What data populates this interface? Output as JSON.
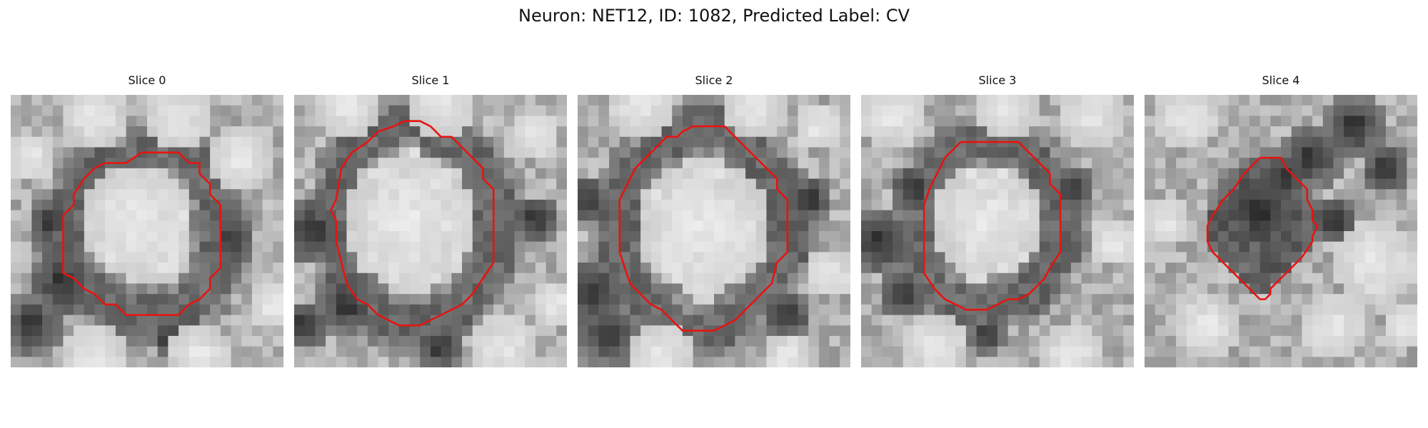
{
  "figure": {
    "title": "Neuron: NET12, ID: 1082, Predicted Label: CV"
  },
  "panels": [
    {
      "title": "Slice 0",
      "contour": [
        [
          12.5,
          5.5
        ],
        [
          16,
          5.5
        ],
        [
          17,
          6.5
        ],
        [
          18,
          6.5
        ],
        [
          18,
          7.5
        ],
        [
          19,
          8.5
        ],
        [
          19,
          9.5
        ],
        [
          20,
          10.5
        ],
        [
          20,
          16.5
        ],
        [
          19,
          17.5
        ],
        [
          19,
          18.5
        ],
        [
          18,
          19.5
        ],
        [
          17,
          20
        ],
        [
          16,
          21
        ],
        [
          11,
          21
        ],
        [
          10,
          20
        ],
        [
          9,
          20
        ],
        [
          8,
          19
        ],
        [
          7,
          18.5
        ],
        [
          6,
          17.5
        ],
        [
          5,
          17
        ],
        [
          5,
          11.5
        ],
        [
          6,
          10.5
        ],
        [
          6,
          9.5
        ],
        [
          7,
          8
        ],
        [
          8,
          7
        ],
        [
          9,
          6.5
        ],
        [
          11,
          6.5
        ],
        [
          12.5,
          5.5
        ]
      ],
      "dark_spots": [
        [
          5,
          18,
          3.5
        ],
        [
          2,
          22,
          3
        ],
        [
          4,
          12,
          2.5
        ],
        [
          21,
          14,
          2.5
        ],
        [
          15,
          23,
          2
        ]
      ],
      "bright_spots": [
        [
          12,
          12,
          5.5
        ],
        [
          8,
          2,
          3
        ],
        [
          16,
          2,
          3
        ],
        [
          2,
          6,
          2.5
        ],
        [
          22,
          6,
          3
        ],
        [
          8,
          25,
          3
        ],
        [
          18,
          25,
          3
        ],
        [
          25,
          20,
          2.5
        ]
      ]
    },
    {
      "title": "Slice 1",
      "contour": [
        [
          10.5,
          2.5
        ],
        [
          12,
          2.5
        ],
        [
          13,
          3
        ],
        [
          14,
          4
        ],
        [
          15,
          4
        ],
        [
          16,
          5
        ],
        [
          17,
          6
        ],
        [
          18,
          7
        ],
        [
          18,
          8
        ],
        [
          19,
          9
        ],
        [
          19,
          14
        ],
        [
          19,
          16
        ],
        [
          18,
          17.5
        ],
        [
          17,
          19
        ],
        [
          16,
          20
        ],
        [
          14,
          21
        ],
        [
          12,
          22
        ],
        [
          10,
          22
        ],
        [
          9,
          21.5
        ],
        [
          8,
          21
        ],
        [
          7,
          20
        ],
        [
          6,
          19.5
        ],
        [
          5,
          18
        ],
        [
          4.5,
          16
        ],
        [
          4,
          14
        ],
        [
          4,
          12
        ],
        [
          3.5,
          11
        ],
        [
          4,
          10
        ],
        [
          4.5,
          7
        ],
        [
          5.5,
          5.5
        ],
        [
          7,
          4.5
        ],
        [
          8,
          3.5
        ],
        [
          9.5,
          3
        ],
        [
          10.5,
          2.5
        ]
      ],
      "dark_spots": [
        [
          1.5,
          13,
          3.5
        ],
        [
          5,
          20,
          3
        ],
        [
          1,
          22,
          2.5
        ],
        [
          23,
          12,
          2.5
        ],
        [
          14,
          24,
          2.5
        ]
      ],
      "bright_spots": [
        [
          11,
          12,
          6.5
        ],
        [
          5,
          1,
          3
        ],
        [
          14,
          1,
          3
        ],
        [
          23,
          4,
          2.5
        ],
        [
          20,
          24,
          3
        ],
        [
          25,
          20,
          2.5
        ]
      ]
    },
    {
      "title": "Slice 2",
      "contour": [
        [
          11,
          3
        ],
        [
          14,
          3
        ],
        [
          15,
          4
        ],
        [
          16,
          5
        ],
        [
          17,
          6
        ],
        [
          18,
          7
        ],
        [
          19,
          8
        ],
        [
          19,
          9
        ],
        [
          20,
          10
        ],
        [
          20,
          11
        ],
        [
          20,
          15
        ],
        [
          19,
          16
        ],
        [
          18.5,
          18
        ],
        [
          17.5,
          19
        ],
        [
          16,
          20.5
        ],
        [
          15,
          21.5
        ],
        [
          13,
          22.5
        ],
        [
          10,
          22.5
        ],
        [
          9,
          21.5
        ],
        [
          8,
          20.5
        ],
        [
          7,
          20
        ],
        [
          6,
          19
        ],
        [
          5,
          18
        ],
        [
          4.5,
          16.5
        ],
        [
          4,
          15
        ],
        [
          4,
          10
        ],
        [
          5,
          8
        ],
        [
          5.5,
          7
        ],
        [
          6.5,
          6
        ],
        [
          7.5,
          5
        ],
        [
          8.5,
          4
        ],
        [
          9.5,
          4
        ],
        [
          10,
          3.5
        ],
        [
          11,
          3
        ]
      ],
      "dark_spots": [
        [
          1,
          10,
          2.5
        ],
        [
          1.5,
          19,
          3.5
        ],
        [
          3,
          23,
          3
        ],
        [
          22,
          10,
          2.5
        ],
        [
          20,
          21,
          2.5
        ]
      ],
      "bright_spots": [
        [
          12,
          12.5,
          6.5
        ],
        [
          6,
          1,
          3
        ],
        [
          17,
          1,
          3
        ],
        [
          23,
          3,
          2.5
        ],
        [
          24,
          17,
          2.5
        ],
        [
          8,
          25,
          3
        ],
        [
          20,
          25,
          2.5
        ]
      ]
    },
    {
      "title": "Slice 3",
      "contour": [
        [
          9.5,
          4.5
        ],
        [
          15,
          4.5
        ],
        [
          16,
          5.5
        ],
        [
          17,
          6.5
        ],
        [
          18,
          7.5
        ],
        [
          18,
          8.5
        ],
        [
          19,
          9.5
        ],
        [
          19,
          15
        ],
        [
          18,
          16.5
        ],
        [
          17.5,
          17.5
        ],
        [
          17,
          18
        ],
        [
          16,
          19
        ],
        [
          15,
          19.5
        ],
        [
          14,
          19.5
        ],
        [
          13,
          20
        ],
        [
          12,
          20.5
        ],
        [
          11,
          20.5
        ],
        [
          10,
          20.5
        ],
        [
          9,
          20
        ],
        [
          8,
          19.5
        ],
        [
          7,
          18.5
        ],
        [
          6,
          17
        ],
        [
          6,
          16
        ],
        [
          6,
          10.5
        ],
        [
          6.5,
          9
        ],
        [
          7,
          8
        ],
        [
          7.5,
          7
        ],
        [
          8,
          6
        ],
        [
          9,
          5
        ],
        [
          9.5,
          4.5
        ]
      ],
      "dark_spots": [
        [
          1.5,
          14,
          3.5
        ],
        [
          5,
          9,
          2.5
        ],
        [
          4,
          19,
          2.5
        ],
        [
          20,
          9,
          2.5
        ],
        [
          12,
          23,
          2
        ]
      ],
      "bright_spots": [
        [
          12,
          12,
          5.5
        ],
        [
          3,
          2,
          3
        ],
        [
          14,
          1,
          3
        ],
        [
          22,
          2,
          3
        ],
        [
          24,
          14,
          2.5
        ],
        [
          7,
          24,
          3
        ],
        [
          20,
          25,
          3
        ]
      ]
    },
    {
      "title": "Slice 4",
      "contour": [
        [
          11,
          6
        ],
        [
          12,
          6
        ],
        [
          13,
          6
        ],
        [
          13.5,
          7
        ],
        [
          14.5,
          8
        ],
        [
          15.5,
          9
        ],
        [
          15.5,
          10
        ],
        [
          16,
          11
        ],
        [
          16,
          12
        ],
        [
          16.5,
          12.5
        ],
        [
          16,
          13.5
        ],
        [
          16,
          14
        ],
        [
          15,
          15.5
        ],
        [
          14,
          16.5
        ],
        [
          13,
          17.5
        ],
        [
          12,
          18.5
        ],
        [
          12,
          19
        ],
        [
          11.5,
          19.5
        ],
        [
          11,
          19.5
        ],
        [
          10,
          18.5
        ],
        [
          9,
          17.5
        ],
        [
          8,
          16.5
        ],
        [
          7,
          15.5
        ],
        [
          6.5,
          15
        ],
        [
          6,
          14
        ],
        [
          6,
          12.5
        ],
        [
          6.5,
          11.5
        ],
        [
          7.5,
          10
        ],
        [
          8.5,
          9
        ],
        [
          9.5,
          7.5
        ],
        [
          10.5,
          6.5
        ],
        [
          11,
          6
        ]
      ],
      "dark_spots": [
        [
          11,
          11,
          5
        ],
        [
          13,
          8,
          3
        ],
        [
          16,
          6,
          3
        ],
        [
          20,
          3,
          3
        ],
        [
          23,
          7,
          2.5
        ],
        [
          18,
          12,
          2.5
        ]
      ],
      "bright_spots": [
        [
          4,
          2,
          3
        ],
        [
          22,
          16,
          4
        ],
        [
          18,
          22,
          3
        ],
        [
          6,
          22,
          3
        ],
        [
          2,
          12,
          2.5
        ],
        [
          25,
          22,
          2.5
        ]
      ]
    }
  ]
}
